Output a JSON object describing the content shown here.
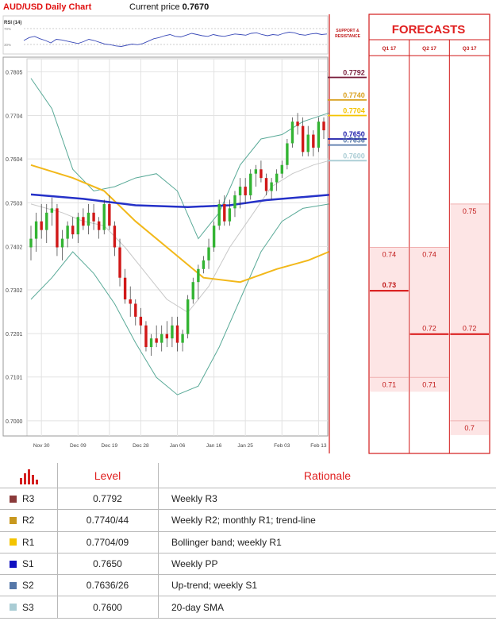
{
  "header": {
    "title": "AUD/USD Daily Chart",
    "price_label": "Current price",
    "price_value": "0.7670"
  },
  "colors": {
    "bull": "#33b433",
    "bear": "#d01818",
    "sma200": "#2531c8",
    "sma100": "#f2b81a",
    "bollinger": "#5aaa98",
    "sma20": "#c8c8c8",
    "forecast_fill": "#fde5e5",
    "forecast_line": "#d81010",
    "accent": "#e02020"
  },
  "rsi": {
    "label": "RSI (14)",
    "upper_label": "70%",
    "lower_label": "30%"
  },
  "support_panel": {
    "title_line1": "SUPPORT &",
    "title_line2": "RESISTANCE"
  },
  "forecasts": {
    "title": "FORECASTS",
    "columns": [
      "Q1 17",
      "Q2 17",
      "Q3 17"
    ]
  },
  "chart_data": {
    "type": "candlestick",
    "ylim": [
      0.6965,
      0.7835
    ],
    "y_ticks": [
      "0.7805",
      "0.7704",
      "0.7604",
      "0.7503",
      "0.7402",
      "0.7302",
      "0.7201",
      "0.7101",
      "0.7000"
    ],
    "x_ticks": [
      "Nov 30",
      "Dec 09",
      "Dec 19",
      "Dec 28",
      "Jan 06",
      "Jan 16",
      "Jan 25",
      "Feb 03",
      "Feb 13"
    ],
    "candles_ohlc": [
      [
        0.74,
        0.745,
        0.737,
        0.742
      ],
      [
        0.742,
        0.748,
        0.739,
        0.746
      ],
      [
        0.746,
        0.75,
        0.742,
        0.744
      ],
      [
        0.744,
        0.75,
        0.741,
        0.748
      ],
      [
        0.748,
        0.7515,
        0.745,
        0.749
      ],
      [
        0.749,
        0.75,
        0.738,
        0.74
      ],
      [
        0.74,
        0.744,
        0.737,
        0.742
      ],
      [
        0.742,
        0.746,
        0.74,
        0.745
      ],
      [
        0.745,
        0.747,
        0.742,
        0.743
      ],
      [
        0.743,
        0.748,
        0.741,
        0.747
      ],
      [
        0.747,
        0.749,
        0.744,
        0.745
      ],
      [
        0.745,
        0.75,
        0.743,
        0.748
      ],
      [
        0.748,
        0.75,
        0.744,
        0.746
      ],
      [
        0.746,
        0.747,
        0.742,
        0.744
      ],
      [
        0.744,
        0.751,
        0.743,
        0.75
      ],
      [
        0.75,
        0.752,
        0.744,
        0.745
      ],
      [
        0.745,
        0.746,
        0.738,
        0.74
      ],
      [
        0.74,
        0.742,
        0.731,
        0.733
      ],
      [
        0.733,
        0.735,
        0.727,
        0.728
      ],
      [
        0.728,
        0.731,
        0.724,
        0.727
      ],
      [
        0.727,
        0.728,
        0.722,
        0.724
      ],
      [
        0.724,
        0.726,
        0.72,
        0.722
      ],
      [
        0.722,
        0.723,
        0.716,
        0.717
      ],
      [
        0.717,
        0.72,
        0.715,
        0.719
      ],
      [
        0.719,
        0.722,
        0.717,
        0.718
      ],
      [
        0.718,
        0.722,
        0.716,
        0.72
      ],
      [
        0.72,
        0.723,
        0.717,
        0.719
      ],
      [
        0.719,
        0.724,
        0.717,
        0.722
      ],
      [
        0.722,
        0.724,
        0.716,
        0.718
      ],
      [
        0.718,
        0.721,
        0.716,
        0.72
      ],
      [
        0.72,
        0.729,
        0.719,
        0.728
      ],
      [
        0.728,
        0.733,
        0.727,
        0.732
      ],
      [
        0.732,
        0.736,
        0.728,
        0.735
      ],
      [
        0.735,
        0.738,
        0.734,
        0.737
      ],
      [
        0.737,
        0.742,
        0.735,
        0.74
      ],
      [
        0.74,
        0.746,
        0.739,
        0.745
      ],
      [
        0.745,
        0.751,
        0.744,
        0.75
      ],
      [
        0.75,
        0.752,
        0.745,
        0.746
      ],
      [
        0.746,
        0.751,
        0.745,
        0.749
      ],
      [
        0.749,
        0.753,
        0.747,
        0.752
      ],
      [
        0.752,
        0.756,
        0.749,
        0.754
      ],
      [
        0.754,
        0.756,
        0.75,
        0.752
      ],
      [
        0.752,
        0.758,
        0.751,
        0.757
      ],
      [
        0.757,
        0.759,
        0.754,
        0.758
      ],
      [
        0.758,
        0.76,
        0.755,
        0.756
      ],
      [
        0.756,
        0.757,
        0.752,
        0.753
      ],
      [
        0.753,
        0.756,
        0.751,
        0.755
      ],
      [
        0.755,
        0.758,
        0.753,
        0.757
      ],
      [
        0.757,
        0.76,
        0.756,
        0.759
      ],
      [
        0.759,
        0.765,
        0.758,
        0.764
      ],
      [
        0.764,
        0.77,
        0.763,
        0.769
      ],
      [
        0.769,
        0.771,
        0.766,
        0.768
      ],
      [
        0.768,
        0.77,
        0.761,
        0.762
      ],
      [
        0.762,
        0.768,
        0.761,
        0.766
      ],
      [
        0.766,
        0.767,
        0.761,
        0.763
      ],
      [
        0.763,
        0.77,
        0.762,
        0.769
      ],
      [
        0.769,
        0.77,
        0.765,
        0.767
      ]
    ],
    "sma200": [
      [
        0,
        0.7522
      ],
      [
        10,
        0.7512
      ],
      [
        20,
        0.7497
      ],
      [
        30,
        0.7493
      ],
      [
        38,
        0.7497
      ],
      [
        45,
        0.7509
      ],
      [
        57,
        0.7521
      ]
    ],
    "sma100": [
      [
        0,
        0.759
      ],
      [
        8,
        0.756
      ],
      [
        14,
        0.753
      ],
      [
        20,
        0.746
      ],
      [
        28,
        0.738
      ],
      [
        33,
        0.733
      ],
      [
        40,
        0.732
      ],
      [
        47,
        0.735
      ],
      [
        53,
        0.737
      ],
      [
        57,
        0.739
      ]
    ],
    "bollinger_upper": [
      [
        0,
        0.779
      ],
      [
        4,
        0.772
      ],
      [
        8,
        0.758
      ],
      [
        12,
        0.753
      ],
      [
        16,
        0.754
      ],
      [
        20,
        0.756
      ],
      [
        24,
        0.757
      ],
      [
        28,
        0.753
      ],
      [
        32,
        0.742
      ],
      [
        36,
        0.748
      ],
      [
        40,
        0.759
      ],
      [
        44,
        0.765
      ],
      [
        48,
        0.766
      ],
      [
        52,
        0.769
      ],
      [
        57,
        0.771
      ]
    ],
    "bollinger_lower": [
      [
        0,
        0.728
      ],
      [
        4,
        0.733
      ],
      [
        8,
        0.739
      ],
      [
        12,
        0.734
      ],
      [
        16,
        0.727
      ],
      [
        20,
        0.718
      ],
      [
        24,
        0.71
      ],
      [
        28,
        0.706
      ],
      [
        32,
        0.708
      ],
      [
        36,
        0.717
      ],
      [
        40,
        0.728
      ],
      [
        44,
        0.739
      ],
      [
        48,
        0.746
      ],
      [
        52,
        0.749
      ],
      [
        57,
        0.75
      ]
    ],
    "sma20": [
      [
        0,
        0.75
      ],
      [
        6,
        0.748
      ],
      [
        10,
        0.746
      ],
      [
        14,
        0.745
      ],
      [
        18,
        0.74
      ],
      [
        22,
        0.734
      ],
      [
        26,
        0.728
      ],
      [
        30,
        0.725
      ],
      [
        34,
        0.731
      ],
      [
        38,
        0.74
      ],
      [
        42,
        0.747
      ],
      [
        46,
        0.754
      ],
      [
        50,
        0.757
      ],
      [
        54,
        0.759
      ],
      [
        57,
        0.76
      ]
    ],
    "support_resistance": [
      {
        "value": 0.7792,
        "label": "0.7792",
        "color": "#7a1e3c"
      },
      {
        "value": 0.774,
        "label": "0.7740",
        "color": "#d9a01e"
      },
      {
        "value": 0.7704,
        "label": "0.7704",
        "color": "#f4c400"
      },
      {
        "value": 0.765,
        "label": "0.7650",
        "color": "#1a1aa8"
      },
      {
        "value": 0.7636,
        "label": "0.7636",
        "color": "#5577a8"
      },
      {
        "value": 0.76,
        "label": "0.7600",
        "color": "#a9ccd4"
      }
    ],
    "forecasts": [
      {
        "quarter": "Q1 17",
        "upper": 0.74,
        "median": 0.73,
        "lower": 0.71,
        "labels": [
          "0.74",
          "0.73",
          "0.71"
        ]
      },
      {
        "quarter": "Q2 17",
        "upper": 0.74,
        "median": 0.72,
        "lower": 0.71,
        "labels": [
          "0.74",
          "0.72",
          "0.71"
        ]
      },
      {
        "quarter": "Q3 17",
        "upper": 0.75,
        "median": 0.72,
        "lower": 0.7,
        "labels": [
          "0.75",
          "0.72",
          "0.7"
        ]
      }
    ]
  },
  "table": {
    "headers": {
      "level": "Level",
      "rationale": "Rationale"
    },
    "rows": [
      {
        "id": "R3",
        "level": "0.7792",
        "rationale": "Weekly R3",
        "color": "#8a3a3a"
      },
      {
        "id": "R2",
        "level": "0.7740/44",
        "rationale": "Weekly R2; monthly R1; trend-line",
        "color": "#c8981e"
      },
      {
        "id": "R1",
        "level": "0.7704/09",
        "rationale": "Bollinger band; weekly R1",
        "color": "#f4c400"
      },
      {
        "id": "S1",
        "level": "0.7650",
        "rationale": "Weekly PP",
        "color": "#1010c0"
      },
      {
        "id": "S2",
        "level": "0.7636/26",
        "rationale": "Up-trend; weekly S1",
        "color": "#5577a8"
      },
      {
        "id": "S3",
        "level": "0.7600",
        "rationale": "20-day SMA",
        "color": "#a9ccd4"
      }
    ]
  }
}
